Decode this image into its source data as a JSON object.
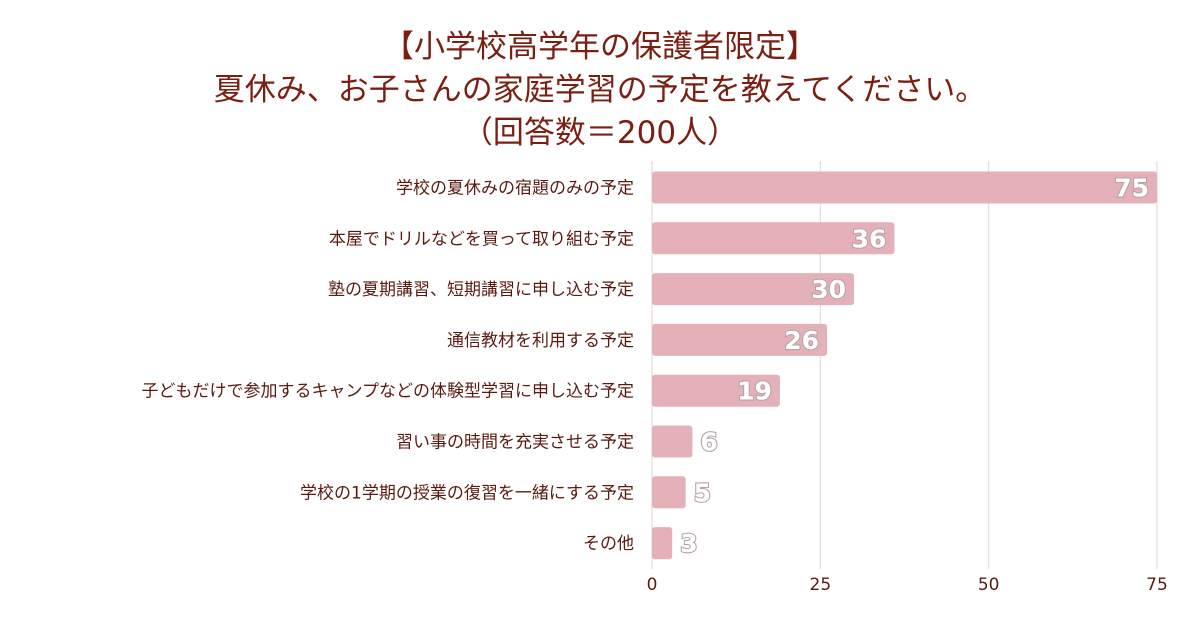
{
  "chart_data": {
    "type": "bar",
    "orientation": "horizontal",
    "title_lines": [
      "【小学校高学年の保護者限定】",
      "夏休み、お子さんの家庭学習の予定を教えてください。",
      "（回答数＝200人）"
    ],
    "categories": [
      "学校の夏休みの宿題のみの予定",
      "本屋でドリルなどを買って取り組む予定",
      "塾の夏期講習、短期講習に申し込む予定",
      "通信教材を利用する予定",
      "子どもだけで参加するキャンプなどの体験型学習に申し込む予定",
      "習い事の時間を充実させる予定",
      "学校の1学期の授業の復習を一緒にする予定",
      "その他"
    ],
    "values": [
      75,
      36,
      30,
      26,
      19,
      6,
      5,
      3
    ],
    "xlim": [
      0,
      75
    ],
    "xticks": [
      "0",
      "25",
      "50",
      "75"
    ],
    "grid": true,
    "colors": {
      "bar": "#e5b1b8",
      "grid": "#e6d9da",
      "title": "#7a1f12",
      "label": "#5a1a10",
      "data_label_outline": "#b7a3a5"
    }
  }
}
